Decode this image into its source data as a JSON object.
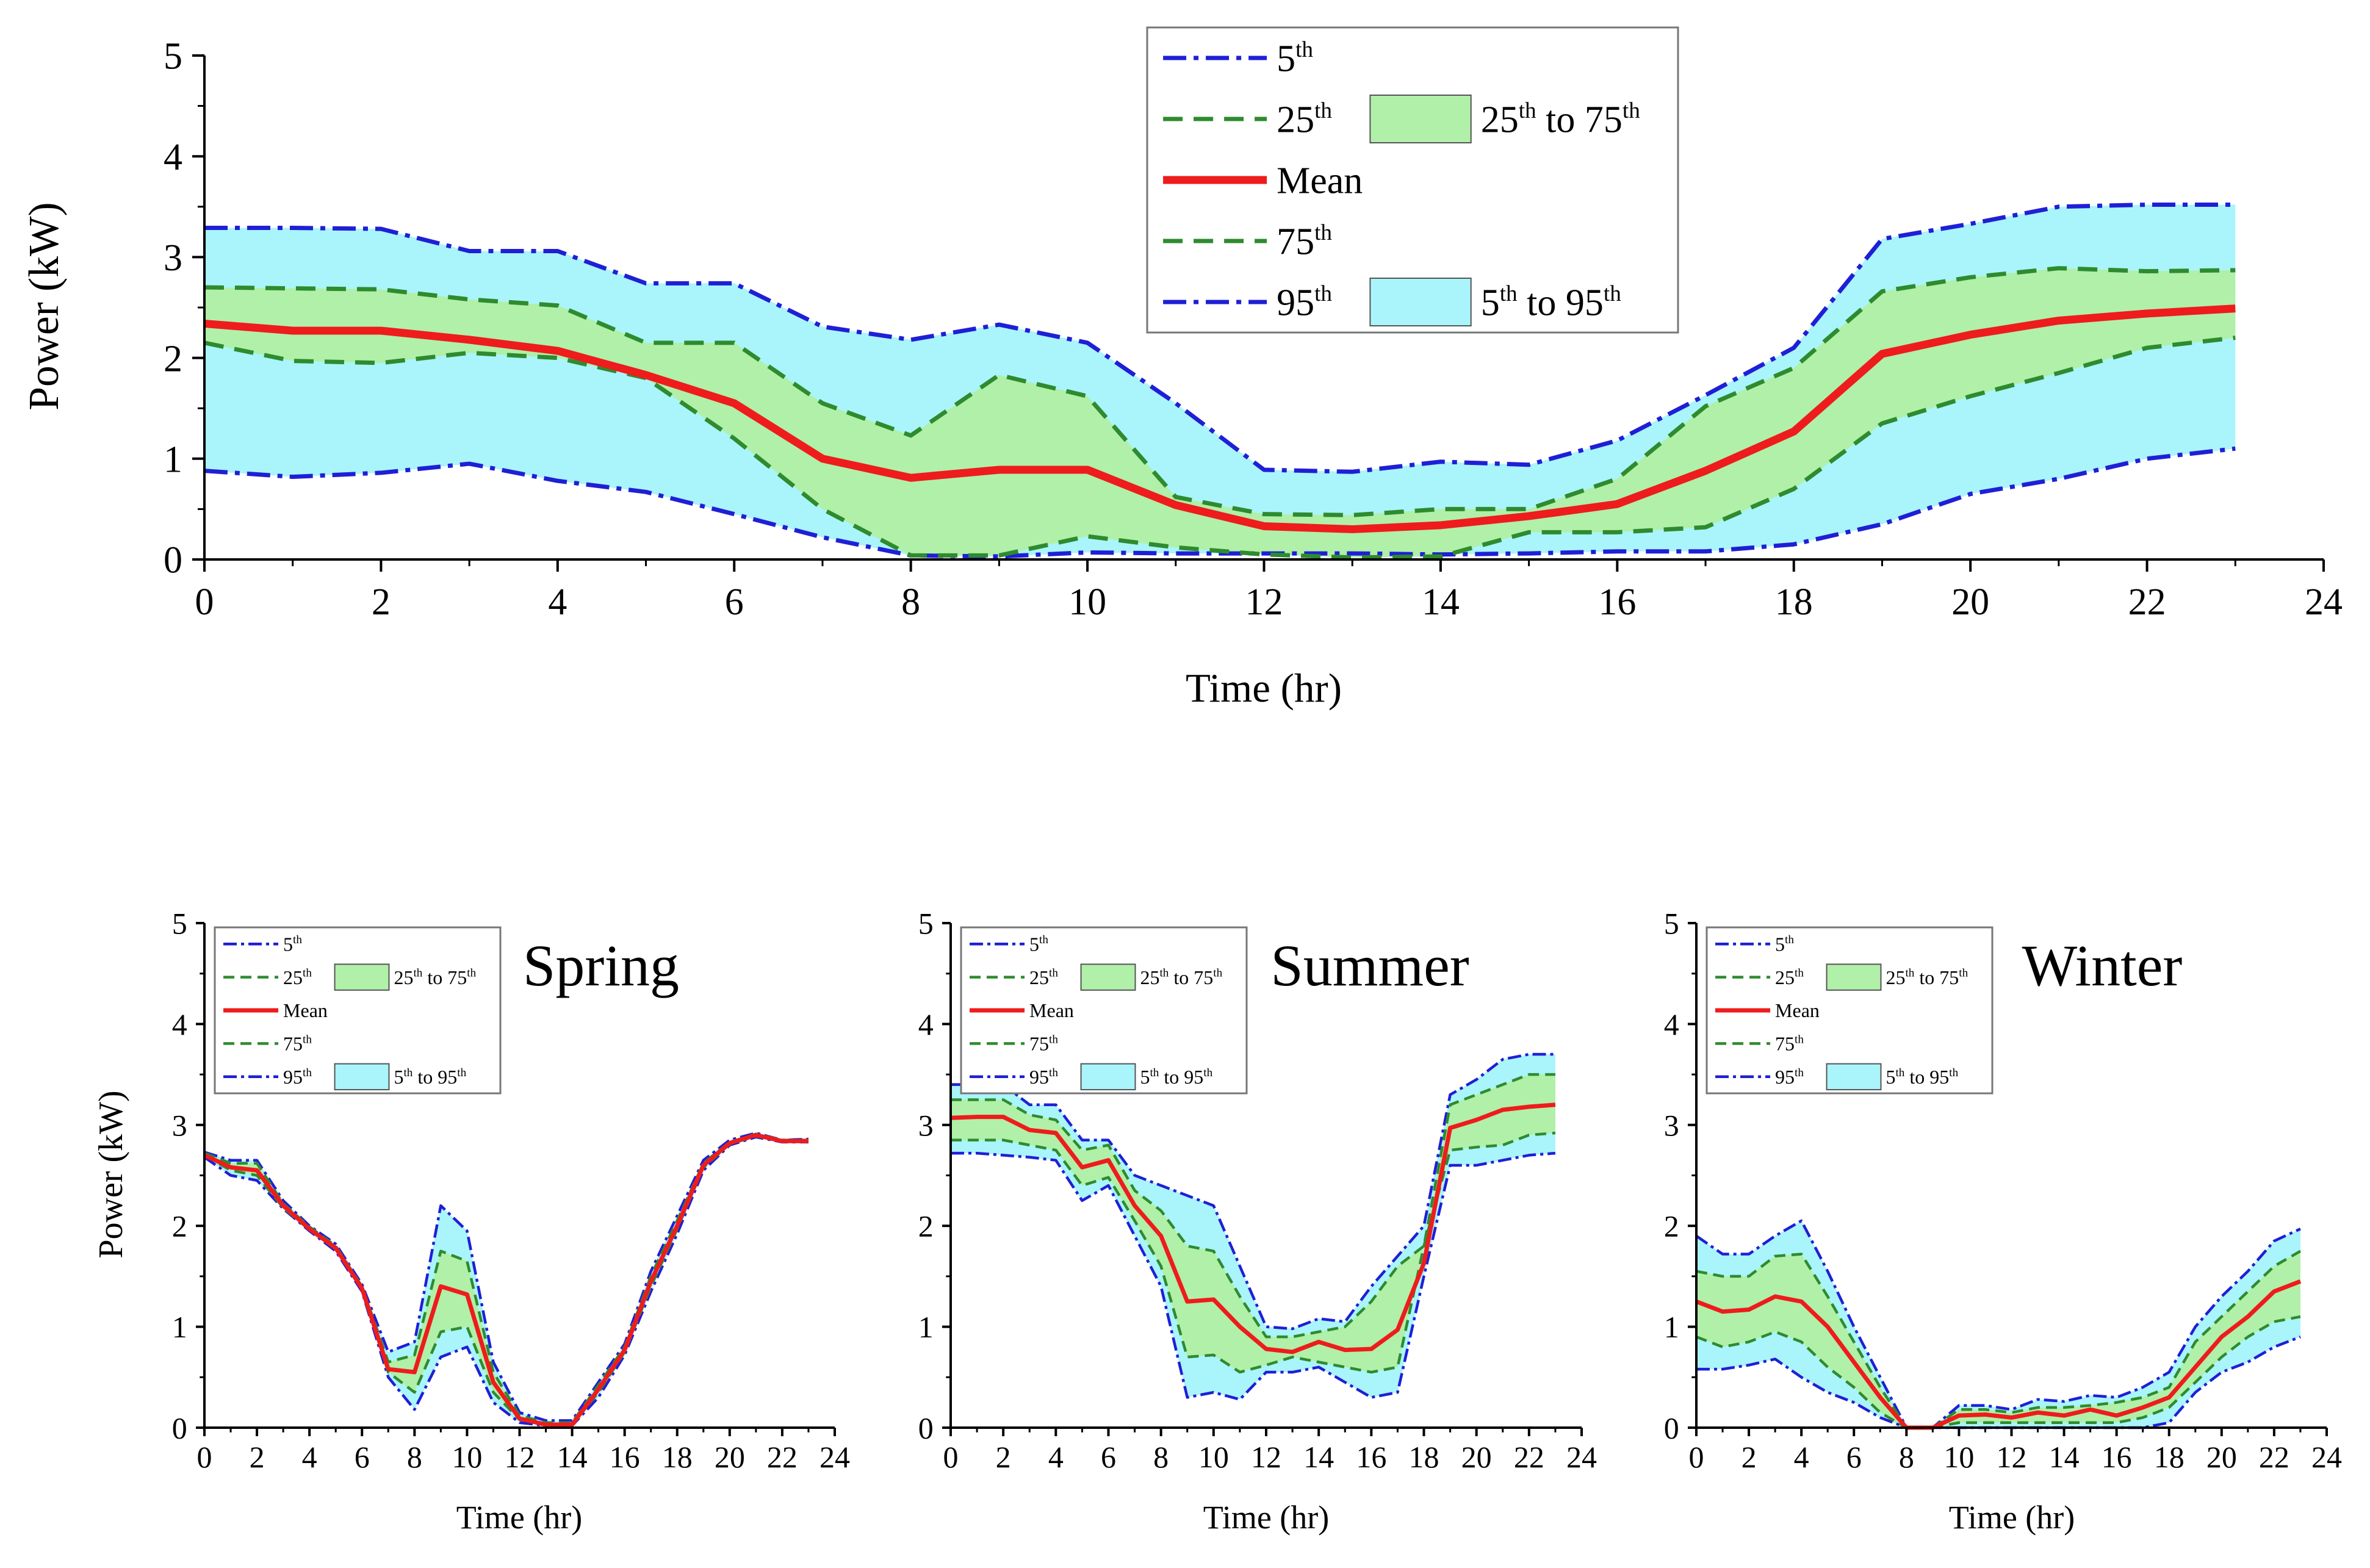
{
  "legend_labels": {
    "p5": "5",
    "p25": "25",
    "mean": "Mean",
    "p75": "75",
    "p95": "95",
    "th": "th",
    "to": "to"
  },
  "colors": {
    "p5_95_line": "#1f1fd6",
    "p25_75_line": "#2e8b2e",
    "mean_line": "#ee1c1c",
    "band_outer": "#aaf4fb",
    "band_inner": "#b0f0a8"
  },
  "chart_data": [
    {
      "type": "area",
      "title": "",
      "xlabel": "Time (hr)",
      "ylabel": "Power (kW)",
      "xlim": [
        0,
        24
      ],
      "ylim": [
        0,
        5
      ],
      "xticks": [
        0,
        2,
        4,
        6,
        8,
        10,
        12,
        14,
        16,
        18,
        20,
        22,
        24
      ],
      "yticks": [
        0,
        1,
        2,
        3,
        4,
        5
      ],
      "x": [
        0,
        1,
        2,
        3,
        4,
        5,
        6,
        7,
        8,
        9,
        10,
        11,
        12,
        13,
        14,
        15,
        16,
        17,
        18,
        19,
        20,
        21,
        22,
        23
      ],
      "series": [
        {
          "name": "5th",
          "values": [
            0.88,
            0.82,
            0.86,
            0.95,
            0.78,
            0.67,
            0.45,
            0.22,
            0.04,
            0.03,
            0.07,
            0.06,
            0.06,
            0.06,
            0.05,
            0.06,
            0.08,
            0.08,
            0.15,
            0.35,
            0.65,
            0.8,
            1.0,
            1.1
          ]
        },
        {
          "name": "25th",
          "values": [
            2.15,
            1.97,
            1.95,
            2.05,
            2.0,
            1.8,
            1.2,
            0.5,
            0.04,
            0.04,
            0.23,
            0.12,
            0.05,
            0.02,
            0.03,
            0.27,
            0.27,
            0.32,
            0.7,
            1.35,
            1.62,
            1.85,
            2.1,
            2.2
          ]
        },
        {
          "name": "Mean",
          "values": [
            2.34,
            2.27,
            2.27,
            2.18,
            2.07,
            1.83,
            1.55,
            1.0,
            0.81,
            0.89,
            0.89,
            0.54,
            0.33,
            0.3,
            0.34,
            0.43,
            0.55,
            0.88,
            1.27,
            2.04,
            2.23,
            2.37,
            2.44,
            2.49
          ]
        },
        {
          "name": "75th",
          "values": [
            2.7,
            2.69,
            2.68,
            2.58,
            2.52,
            2.15,
            2.15,
            1.55,
            1.23,
            1.83,
            1.62,
            0.62,
            0.45,
            0.44,
            0.5,
            0.5,
            0.8,
            1.52,
            1.9,
            2.66,
            2.8,
            2.89,
            2.86,
            2.87
          ]
        },
        {
          "name": "95th",
          "values": [
            3.29,
            3.29,
            3.28,
            3.06,
            3.06,
            2.74,
            2.74,
            2.31,
            2.18,
            2.33,
            2.15,
            1.55,
            0.89,
            0.87,
            0.97,
            0.94,
            1.18,
            1.63,
            2.1,
            3.18,
            3.33,
            3.5,
            3.52,
            3.52
          ]
        }
      ],
      "legend_location": "top-center"
    },
    {
      "type": "area",
      "title": "Spring",
      "xlabel": "Time (hr)",
      "ylabel": "Power (kW)",
      "xlim": [
        0,
        24
      ],
      "ylim": [
        0,
        5
      ],
      "xticks": [
        0,
        2,
        4,
        6,
        8,
        10,
        12,
        14,
        16,
        18,
        20,
        22,
        24
      ],
      "yticks": [
        0,
        1,
        2,
        3,
        4,
        5
      ],
      "x": [
        0,
        1,
        2,
        3,
        4,
        5,
        6,
        7,
        8,
        9,
        10,
        11,
        12,
        13,
        14,
        15,
        16,
        17,
        18,
        19,
        20,
        21,
        22,
        23
      ],
      "series": [
        {
          "name": "5th",
          "values": [
            2.68,
            2.5,
            2.45,
            2.17,
            1.95,
            1.75,
            1.35,
            0.5,
            0.18,
            0.7,
            0.8,
            0.25,
            0.05,
            0.02,
            0.02,
            0.3,
            0.72,
            1.35,
            1.92,
            2.55,
            2.8,
            2.88,
            2.83,
            2.83
          ]
        },
        {
          "name": "25th",
          "values": [
            2.7,
            2.55,
            2.5,
            2.18,
            1.96,
            1.77,
            1.37,
            0.55,
            0.35,
            0.95,
            1.0,
            0.35,
            0.08,
            0.03,
            0.03,
            0.35,
            0.75,
            1.4,
            1.97,
            2.58,
            2.81,
            2.89,
            2.84,
            2.84
          ]
        },
        {
          "name": "Mean",
          "values": [
            2.7,
            2.58,
            2.55,
            2.2,
            1.97,
            1.78,
            1.38,
            0.58,
            0.55,
            1.4,
            1.32,
            0.45,
            0.09,
            0.03,
            0.03,
            0.38,
            0.77,
            1.45,
            2.0,
            2.6,
            2.82,
            2.9,
            2.84,
            2.84
          ]
        },
        {
          "name": "75th",
          "values": [
            2.72,
            2.62,
            2.62,
            2.22,
            1.99,
            1.8,
            1.4,
            0.65,
            0.72,
            1.75,
            1.65,
            0.55,
            0.12,
            0.05,
            0.05,
            0.42,
            0.8,
            1.5,
            2.05,
            2.62,
            2.83,
            2.91,
            2.85,
            2.85
          ]
        },
        {
          "name": "95th",
          "values": [
            2.73,
            2.65,
            2.65,
            2.25,
            2.0,
            1.82,
            1.42,
            0.75,
            0.85,
            2.2,
            1.95,
            0.65,
            0.15,
            0.07,
            0.07,
            0.45,
            0.83,
            1.55,
            2.1,
            2.65,
            2.85,
            2.92,
            2.85,
            2.86
          ]
        }
      ],
      "legend_location": "top-left"
    },
    {
      "type": "area",
      "title": "Summer",
      "xlabel": "Time (hr)",
      "ylabel": "",
      "xlim": [
        0,
        24
      ],
      "ylim": [
        0,
        5
      ],
      "xticks": [
        0,
        2,
        4,
        6,
        8,
        10,
        12,
        14,
        16,
        18,
        20,
        22,
        24
      ],
      "yticks": [
        0,
        1,
        2,
        3,
        4,
        5
      ],
      "x": [
        0,
        1,
        2,
        3,
        4,
        5,
        6,
        7,
        8,
        9,
        10,
        11,
        12,
        13,
        14,
        15,
        16,
        17,
        18,
        19,
        20,
        21,
        22,
        23
      ],
      "series": [
        {
          "name": "5th",
          "values": [
            2.72,
            2.72,
            2.7,
            2.68,
            2.65,
            2.25,
            2.4,
            1.9,
            1.4,
            0.3,
            0.35,
            0.28,
            0.55,
            0.55,
            0.6,
            0.45,
            0.3,
            0.35,
            1.5,
            2.6,
            2.6,
            2.65,
            2.7,
            2.72
          ]
        },
        {
          "name": "25th",
          "values": [
            2.85,
            2.85,
            2.85,
            2.8,
            2.75,
            2.4,
            2.48,
            2.05,
            1.6,
            0.7,
            0.72,
            0.55,
            0.62,
            0.7,
            0.65,
            0.6,
            0.55,
            0.6,
            1.8,
            2.75,
            2.78,
            2.8,
            2.9,
            2.92
          ]
        },
        {
          "name": "Mean",
          "values": [
            3.07,
            3.08,
            3.08,
            2.95,
            2.92,
            2.58,
            2.65,
            2.2,
            1.9,
            1.25,
            1.27,
            1.0,
            0.78,
            0.75,
            0.85,
            0.77,
            0.78,
            0.97,
            1.63,
            2.97,
            3.05,
            3.15,
            3.18,
            3.2
          ]
        },
        {
          "name": "75th",
          "values": [
            3.25,
            3.25,
            3.25,
            3.1,
            3.05,
            2.75,
            2.8,
            2.35,
            2.15,
            1.8,
            1.75,
            1.3,
            0.9,
            0.9,
            0.95,
            1.0,
            1.25,
            1.6,
            1.8,
            3.2,
            3.3,
            3.4,
            3.5,
            3.5
          ]
        },
        {
          "name": "95th",
          "values": [
            3.4,
            3.4,
            3.4,
            3.2,
            3.2,
            2.85,
            2.85,
            2.5,
            2.4,
            2.3,
            2.2,
            1.6,
            1.0,
            0.98,
            1.08,
            1.05,
            1.4,
            1.7,
            2.0,
            3.3,
            3.45,
            3.65,
            3.7,
            3.7
          ]
        }
      ],
      "legend_location": "top-left"
    },
    {
      "type": "area",
      "title": "Winter",
      "xlabel": "Time (hr)",
      "ylabel": "",
      "xlim": [
        0,
        24
      ],
      "ylim": [
        0,
        5
      ],
      "xticks": [
        0,
        2,
        4,
        6,
        8,
        10,
        12,
        14,
        16,
        18,
        20,
        22,
        24
      ],
      "yticks": [
        0,
        1,
        2,
        3,
        4,
        5
      ],
      "x": [
        0,
        1,
        2,
        3,
        4,
        5,
        6,
        7,
        8,
        9,
        10,
        11,
        12,
        13,
        14,
        15,
        16,
        17,
        18,
        19,
        20,
        21,
        22,
        23
      ],
      "series": [
        {
          "name": "5th",
          "values": [
            0.58,
            0.58,
            0.62,
            0.68,
            0.5,
            0.35,
            0.25,
            0.1,
            0.0,
            0.0,
            0.0,
            0.0,
            0.0,
            0.0,
            0.0,
            0.0,
            0.0,
            0.0,
            0.05,
            0.35,
            0.55,
            0.65,
            0.8,
            0.9
          ]
        },
        {
          "name": "25th",
          "values": [
            0.9,
            0.8,
            0.85,
            0.95,
            0.85,
            0.6,
            0.4,
            0.15,
            0.0,
            0.0,
            0.05,
            0.05,
            0.05,
            0.05,
            0.05,
            0.05,
            0.05,
            0.1,
            0.2,
            0.45,
            0.7,
            0.9,
            1.05,
            1.1
          ]
        },
        {
          "name": "Mean",
          "values": [
            1.25,
            1.15,
            1.17,
            1.3,
            1.25,
            1.0,
            0.65,
            0.3,
            0.0,
            0.0,
            0.12,
            0.13,
            0.1,
            0.15,
            0.12,
            0.18,
            0.12,
            0.2,
            0.3,
            0.6,
            0.9,
            1.1,
            1.35,
            1.45
          ]
        },
        {
          "name": "75th",
          "values": [
            1.55,
            1.5,
            1.5,
            1.7,
            1.72,
            1.3,
            0.85,
            0.4,
            0.0,
            0.0,
            0.18,
            0.18,
            0.15,
            0.2,
            0.2,
            0.22,
            0.25,
            0.3,
            0.4,
            0.85,
            1.1,
            1.35,
            1.6,
            1.75
          ]
        },
        {
          "name": "95th",
          "values": [
            1.9,
            1.72,
            1.72,
            1.9,
            2.05,
            1.55,
            1.0,
            0.5,
            0.0,
            0.0,
            0.22,
            0.22,
            0.18,
            0.28,
            0.26,
            0.32,
            0.3,
            0.4,
            0.55,
            1.0,
            1.3,
            1.55,
            1.85,
            1.97
          ]
        }
      ],
      "legend_location": "top-left"
    }
  ]
}
